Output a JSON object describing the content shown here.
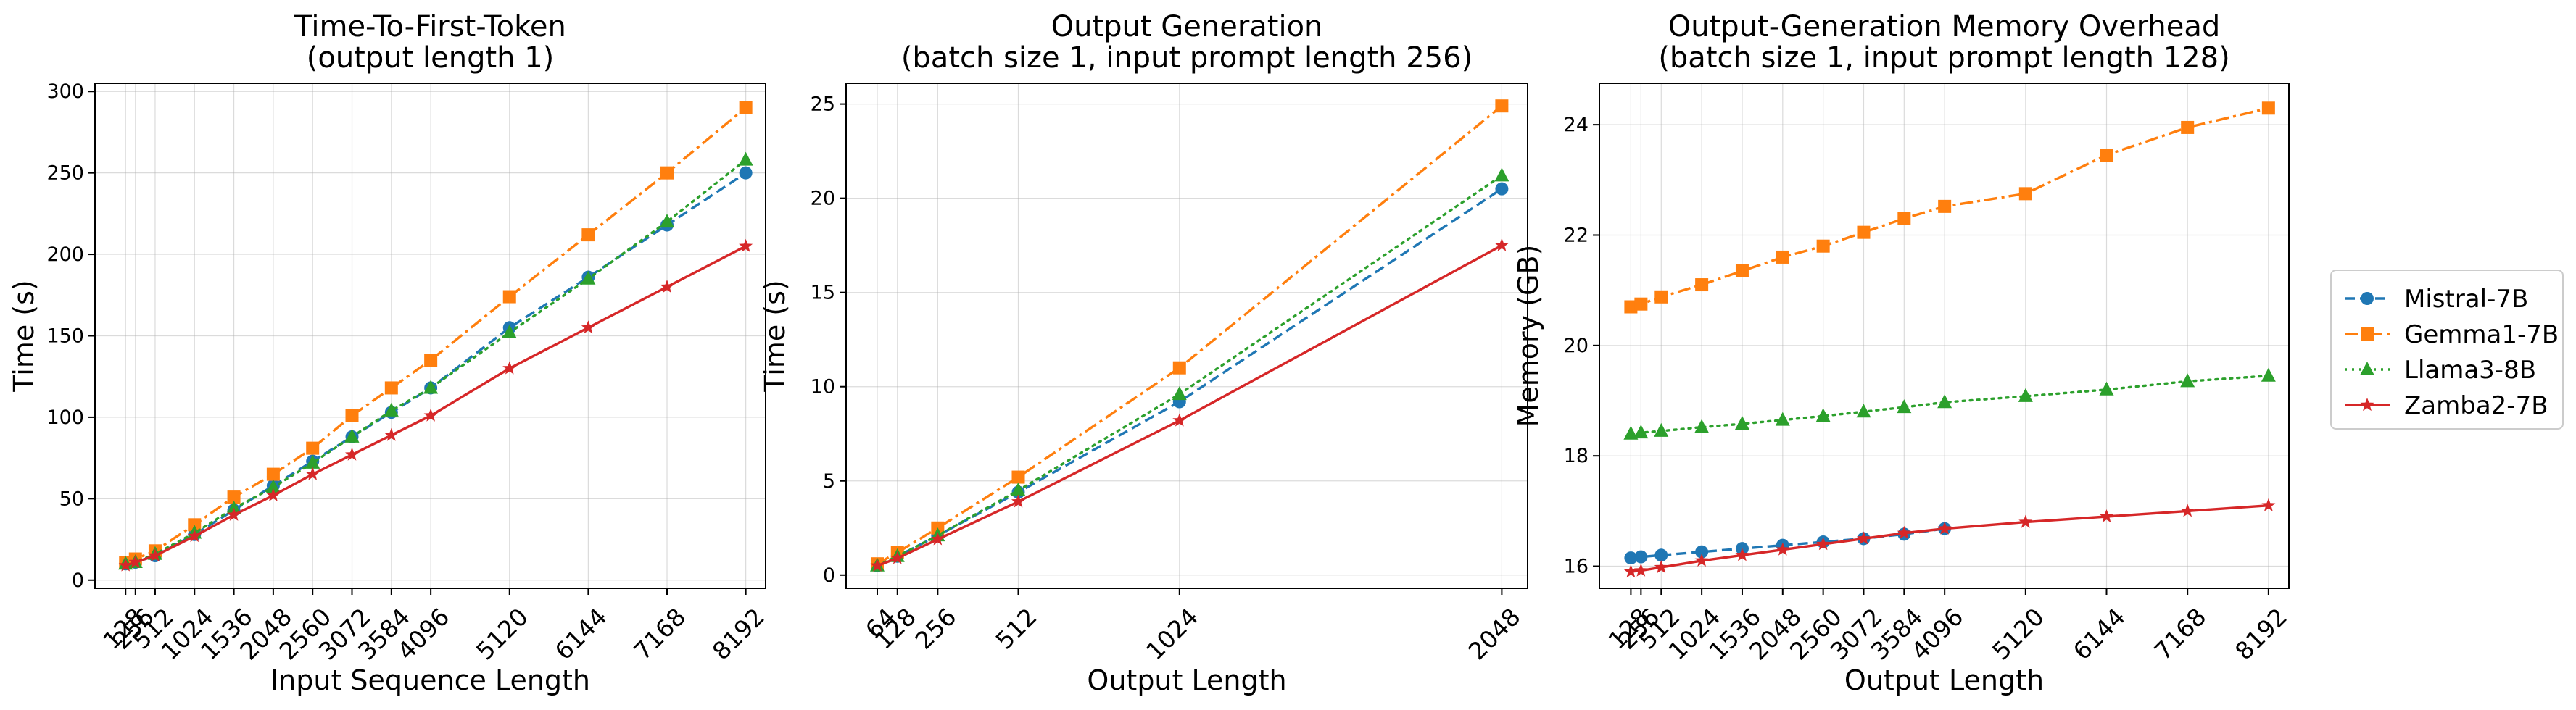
{
  "colors": {
    "Mistral-7B": "#1f77b4",
    "Gemma1-7B": "#ff7f0e",
    "Llama3-8B": "#2ca02c",
    "Zamba2-7B": "#d62728"
  },
  "legend": [
    {
      "name": "Mistral-7B",
      "marker": "circle",
      "dash": "dashed"
    },
    {
      "name": "Gemma1-7B",
      "marker": "square",
      "dash": "dashdot"
    },
    {
      "name": "Llama3-8B",
      "marker": "triangle",
      "dash": "dotted"
    },
    {
      "name": "Zamba2-7B",
      "marker": "star",
      "dash": "solid"
    }
  ],
  "chart_data": [
    {
      "type": "line",
      "title": [
        "Time-To-First-Token",
        "(output length 1)"
      ],
      "xlabel": "Input Sequence Length",
      "ylabel": "Time (s)",
      "xlim": [
        -270,
        8450
      ],
      "ylim": [
        -5,
        305
      ],
      "xticks": [
        128,
        256,
        512,
        1024,
        1536,
        2048,
        2560,
        3072,
        3584,
        4096,
        5120,
        6144,
        7168,
        8192
      ],
      "yticks": [
        0,
        50,
        100,
        150,
        200,
        250,
        300
      ],
      "series": [
        {
          "name": "Mistral-7B",
          "x": [
            128,
            256,
            512,
            1024,
            1536,
            2048,
            2560,
            3072,
            3584,
            4096,
            5120,
            6144,
            7168,
            8192
          ],
          "y": [
            10,
            11,
            15,
            28,
            43,
            58,
            73,
            88,
            103,
            118,
            155,
            186,
            218,
            250
          ]
        },
        {
          "name": "Gemma1-7B",
          "x": [
            128,
            256,
            512,
            1024,
            1536,
            2048,
            2560,
            3072,
            3584,
            4096,
            5120,
            6144,
            7168,
            8192
          ],
          "y": [
            11,
            13,
            18,
            34,
            51,
            65,
            81,
            101,
            118,
            135,
            174,
            212,
            250,
            290
          ]
        },
        {
          "name": "Llama3-8B",
          "x": [
            128,
            256,
            512,
            1024,
            1536,
            2048,
            2560,
            3072,
            3584,
            4096,
            5120,
            6144,
            7168,
            8192
          ],
          "y": [
            10,
            11,
            16,
            29,
            44,
            57,
            72,
            88,
            104,
            118,
            152,
            185,
            220,
            258
          ]
        },
        {
          "name": "Zamba2-7B",
          "x": [
            128,
            256,
            512,
            1024,
            1536,
            2048,
            2560,
            3072,
            3584,
            4096,
            5120,
            6144,
            7168,
            8192
          ],
          "y": [
            9,
            11,
            15,
            27,
            40,
            52,
            65,
            77,
            89,
            101,
            130,
            155,
            180,
            205
          ]
        }
      ]
    },
    {
      "type": "line",
      "title": [
        "Output Generation",
        "(batch size 1, input prompt length 256)"
      ],
      "xlabel": "Output Length",
      "ylabel": "Time (s)",
      "xlim": [
        -35,
        2130
      ],
      "ylim": [
        -0.7,
        26.1
      ],
      "xticks": [
        64,
        128,
        256,
        512,
        1024,
        2048
      ],
      "yticks": [
        0,
        5,
        10,
        15,
        20,
        25
      ],
      "series": [
        {
          "name": "Mistral-7B",
          "x": [
            64,
            128,
            256,
            512,
            1024,
            2048
          ],
          "y": [
            0.5,
            1.0,
            2.1,
            4.4,
            9.2,
            20.5
          ]
        },
        {
          "name": "Gemma1-7B",
          "x": [
            64,
            128,
            256,
            512,
            1024,
            2048
          ],
          "y": [
            0.6,
            1.2,
            2.5,
            5.2,
            11.0,
            24.9
          ]
        },
        {
          "name": "Llama3-8B",
          "x": [
            64,
            128,
            256,
            512,
            1024,
            2048
          ],
          "y": [
            0.5,
            1.0,
            2.1,
            4.5,
            9.6,
            21.2
          ]
        },
        {
          "name": "Zamba2-7B",
          "x": [
            64,
            128,
            256,
            512,
            1024,
            2048
          ],
          "y": [
            0.5,
            0.9,
            1.9,
            3.9,
            8.2,
            17.5
          ]
        }
      ]
    },
    {
      "type": "line",
      "title": [
        "Output-Generation Memory Overhead",
        "(batch size 1, input prompt length 128)"
      ],
      "xlabel": "Output Length",
      "ylabel": "Memory (GB)",
      "xlim": [
        -270,
        8450
      ],
      "ylim": [
        15.6,
        24.75
      ],
      "xticks": [
        128,
        256,
        512,
        1024,
        1536,
        2048,
        2560,
        3072,
        3584,
        4096,
        5120,
        6144,
        7168,
        8192
      ],
      "yticks": [
        16,
        18,
        20,
        22,
        24
      ],
      "series": [
        {
          "name": "Mistral-7B",
          "x": [
            128,
            256,
            512,
            1024,
            1536,
            2048,
            2560,
            3072,
            3584,
            4096
          ],
          "y": [
            16.15,
            16.17,
            16.2,
            16.26,
            16.32,
            16.38,
            16.44,
            16.5,
            16.58,
            16.68
          ]
        },
        {
          "name": "Gemma1-7B",
          "x": [
            128,
            256,
            512,
            1024,
            1536,
            2048,
            2560,
            3072,
            3584,
            4096,
            5120,
            6144,
            7168,
            8192
          ],
          "y": [
            20.7,
            20.75,
            20.88,
            21.1,
            21.35,
            21.6,
            21.8,
            22.05,
            22.3,
            22.52,
            22.75,
            23.45,
            23.95,
            24.3
          ]
        },
        {
          "name": "Llama3-8B",
          "x": [
            128,
            256,
            512,
            1024,
            1536,
            2048,
            2560,
            3072,
            3584,
            4096,
            5120,
            6144,
            7168,
            8192
          ],
          "y": [
            18.4,
            18.42,
            18.45,
            18.52,
            18.58,
            18.65,
            18.72,
            18.8,
            18.88,
            18.97,
            19.08,
            19.2,
            19.35,
            19.45
          ]
        },
        {
          "name": "Zamba2-7B",
          "x": [
            128,
            256,
            512,
            1024,
            1536,
            2048,
            2560,
            3072,
            3584,
            4096,
            5120,
            6144,
            7168,
            8192
          ],
          "y": [
            15.9,
            15.92,
            15.98,
            16.1,
            16.2,
            16.3,
            16.4,
            16.5,
            16.6,
            16.68,
            16.8,
            16.9,
            17.0,
            17.1
          ]
        }
      ]
    }
  ]
}
